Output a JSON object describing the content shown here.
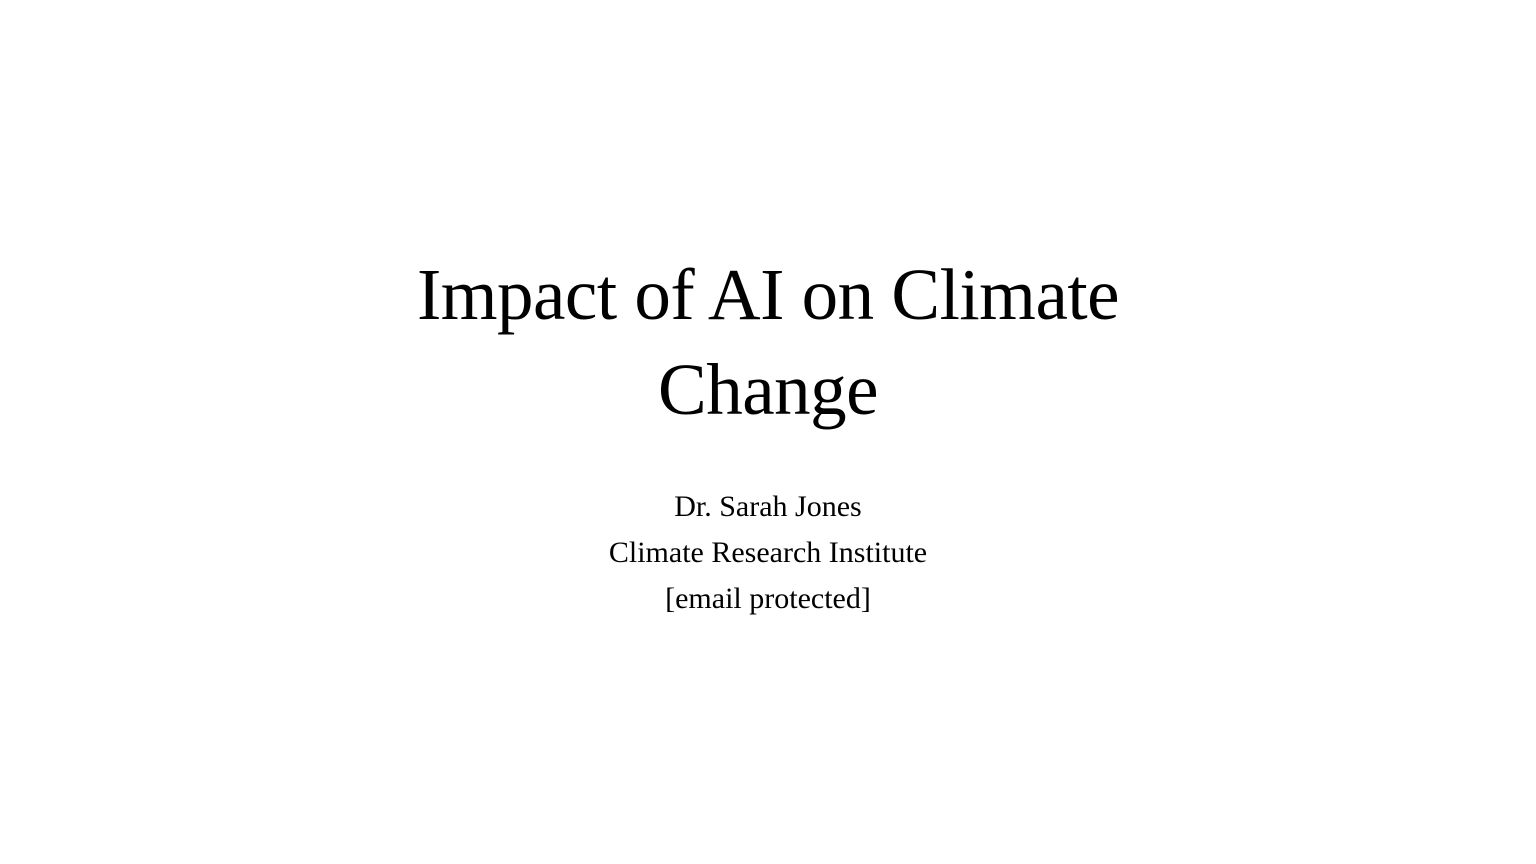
{
  "slide": {
    "title_line1": "Impact of AI on Climate",
    "title_line2": "Change",
    "author": "Dr. Sarah Jones",
    "affiliation": "Climate Research Institute",
    "email": "[email protected]"
  }
}
